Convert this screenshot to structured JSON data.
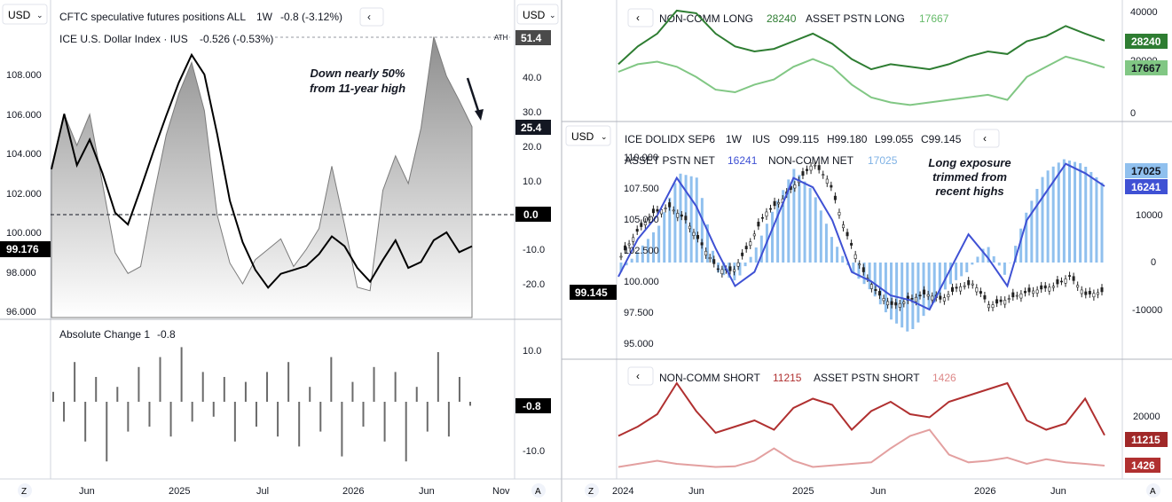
{
  "currency_label": "USD",
  "left": {
    "header": {
      "title": "CFTC speculative futures positions ALL",
      "interval": "1W",
      "change": "-0.8 (-3.12%)",
      "sub": "ICE U.S. Dollar Index · IUS",
      "sub_change": "-0.526 (-0.53%)",
      "ath": "ATH"
    },
    "annotation": [
      "Down nearly 50%",
      "from 11-year high"
    ],
    "left_axis_ticks": [
      "108.000",
      "106.000",
      "104.000",
      "102.000",
      "100.000",
      "98.000",
      "96.000"
    ],
    "right_axis_ticks": [
      "40.0",
      "30.0",
      "20.0",
      "10.0",
      "-10.0",
      "-20.0"
    ],
    "badges": {
      "price": "99.176",
      "spec_high": "51.4",
      "spec_last": "25.4",
      "zero": "0.0",
      "change_last": "-0.8"
    },
    "change_panel": {
      "title": "Absolute Change 1",
      "value": "-0.8",
      "ticks": [
        "10.0",
        "-10.0"
      ]
    },
    "x_ticks": [
      "Jun",
      "2025",
      "Jul",
      "2026",
      "Jun",
      "Nov"
    ],
    "footer": {
      "z": "Z",
      "a": "A"
    }
  },
  "right": {
    "top": {
      "legend": {
        "a": "NON-COMM LONG",
        "a_val": "28240",
        "b": "ASSET PSTN LONG",
        "b_val": "17667"
      },
      "ticks": [
        "40000",
        "20000",
        "0"
      ],
      "badges": {
        "a": "28240",
        "b": "17667"
      }
    },
    "mid": {
      "header": {
        "symbol": "ICE DOLIDX SEP6",
        "interval": "1W",
        "exchange": "IUS",
        "o": "O99.115",
        "h": "H99.180",
        "l": "L99.055",
        "c": "C99.145"
      },
      "legend": {
        "a": "ASSET PSTN NET",
        "a_val": "16241",
        "b": "NON-COMM NET",
        "b_val": "17025"
      },
      "annotation": [
        "Long exposure",
        "trimmed from",
        "recent highs"
      ],
      "left_ticks": [
        "110.000",
        "107.500",
        "105.000",
        "102.500",
        "100.000",
        "97.500",
        "95.000"
      ],
      "right_ticks": [
        "10000",
        "0",
        "-10000"
      ],
      "badges": {
        "price": "99.145",
        "b": "17025",
        "a": "16241"
      }
    },
    "bot": {
      "legend": {
        "a": "NON-COMM SHORT",
        "a_val": "11215",
        "b": "ASSET PSTN SHORT",
        "b_val": "1426"
      },
      "ticks": [
        "20000"
      ],
      "badges": {
        "a": "11215",
        "b": "1426"
      }
    },
    "x_ticks": [
      "2024",
      "Jun",
      "2025",
      "Jun",
      "2026",
      "Jun"
    ],
    "footer": {
      "z": "Z",
      "a": "A"
    }
  },
  "chart_data": [
    {
      "type": "line",
      "title": "CFTC speculative futures positions ALL",
      "ylim": [
        -25,
        55
      ],
      "series": [
        {
          "name": "ICE U.S. Dollar Index",
          "values": [
            103.2,
            106.0,
            103.4,
            104.7,
            103.0,
            101.0,
            100.4,
            102.2,
            104.1,
            105.9,
            107.6,
            109.0,
            108.0,
            105.0,
            101.6,
            99.5,
            98.1,
            97.2,
            97.9,
            98.1,
            98.3,
            98.9,
            99.8,
            99.3,
            98.2,
            97.5,
            98.6,
            99.6,
            98.2,
            98.5,
            99.6,
            100.0,
            99.0,
            99.3
          ]
        },
        {
          "name": "CFTC speculative futures positions ALL",
          "values": [
            14,
            29,
            20,
            29,
            9,
            -11,
            -17,
            -15,
            5,
            23,
            35,
            44,
            30,
            0,
            -14,
            -20,
            -13,
            -10,
            -7,
            -15,
            -10,
            -4,
            14,
            -3,
            -21,
            -22,
            7,
            17,
            9,
            25,
            51.4,
            40,
            33,
            25.4
          ]
        }
      ]
    },
    {
      "type": "bar",
      "title": "Absolute Change 1",
      "ylim": [
        -13,
        13
      ],
      "values": [
        2,
        -4,
        8,
        -8,
        5,
        -12,
        3,
        -6,
        7,
        -5,
        9,
        -7,
        11,
        -4,
        6,
        -3,
        5,
        -8,
        4,
        -5,
        6,
        -7,
        8,
        -9,
        3,
        -6,
        9,
        -11,
        4,
        -5,
        7,
        -8,
        6,
        -12,
        3,
        -6,
        10,
        -7,
        5,
        -0.8
      ]
    },
    {
      "type": "line",
      "title": "NON-COMM LONG / ASSET PSTN LONG",
      "ylim": [
        0,
        40000
      ],
      "series": [
        {
          "name": "NON-COMM LONG",
          "values": [
            19000,
            26000,
            31000,
            40000,
            39000,
            31000,
            26000,
            24000,
            25000,
            28000,
            31000,
            27000,
            21000,
            17000,
            19000,
            18000,
            17000,
            19000,
            22000,
            24000,
            23000,
            28000,
            30000,
            34000,
            31000,
            28240
          ]
        },
        {
          "name": "ASSET PSTN LONG",
          "values": [
            16000,
            19000,
            20000,
            18000,
            14000,
            9000,
            8000,
            11000,
            13000,
            18000,
            21000,
            18000,
            11000,
            6000,
            4000,
            3000,
            4000,
            5000,
            6000,
            7000,
            5000,
            14000,
            18000,
            22000,
            20000,
            17667
          ]
        }
      ]
    },
    {
      "type": "line",
      "title": "ICE DOLIDX SEP6",
      "ylim": [
        95,
        110
      ],
      "series": [
        {
          "name": "ICE DOLIDX SEP6",
          "values": [
            102.0,
            104.0,
            105.5,
            106.0,
            105.0,
            103.0,
            101.0,
            100.8,
            103.0,
            105.5,
            106.5,
            108.0,
            109.5,
            108.0,
            104.0,
            101.0,
            99.0,
            98.0,
            98.5,
            99.0,
            98.5,
            99.5,
            99.8,
            98.0,
            98.5,
            99.0,
            99.3,
            99.6,
            100.4,
            98.9,
            99.145
          ]
        }
      ]
    },
    {
      "type": "line",
      "title": "ASSET PSTN NET / NON-COMM NET",
      "ylim": [
        -15000,
        22000
      ],
      "series": [
        {
          "name": "ASSET PSTN NET",
          "values": [
            -3000,
            5000,
            10000,
            18000,
            12000,
            3000,
            -5000,
            -2000,
            8000,
            18000,
            16000,
            9000,
            -2000,
            -4000,
            -7000,
            -8000,
            -10000,
            -2000,
            6000,
            1000,
            -5000,
            9000,
            15000,
            21000,
            19000,
            16241
          ]
        },
        {
          "name": "NON-COMM NET",
          "values": [
            -2000,
            3000,
            8000,
            19000,
            18000,
            -2000,
            -4000,
            3000,
            12000,
            20000,
            15000,
            5000,
            -2000,
            -6000,
            -12000,
            -15000,
            -10000,
            -5000,
            -2000,
            4000,
            -3000,
            10000,
            19000,
            22000,
            21000,
            17025
          ]
        }
      ]
    },
    {
      "type": "line",
      "title": "NON-COMM SHORT / ASSET PSTN SHORT",
      "ylim": [
        0,
        30000
      ],
      "series": [
        {
          "name": "NON-COMM SHORT",
          "values": [
            11000,
            14000,
            18000,
            28000,
            19000,
            12000,
            14000,
            16000,
            13000,
            20000,
            23000,
            21000,
            13000,
            19000,
            22000,
            18000,
            17000,
            22000,
            24000,
            26000,
            28000,
            16000,
            13000,
            15000,
            23000,
            11215
          ]
        },
        {
          "name": "ASSET PSTN SHORT",
          "values": [
            1000,
            2000,
            3000,
            2000,
            1500,
            1000,
            1200,
            3000,
            7000,
            3000,
            1000,
            1500,
            2000,
            2500,
            7000,
            11000,
            13000,
            5000,
            2500,
            3000,
            4000,
            2000,
            3500,
            2500,
            2000,
            1426
          ]
        }
      ]
    }
  ]
}
